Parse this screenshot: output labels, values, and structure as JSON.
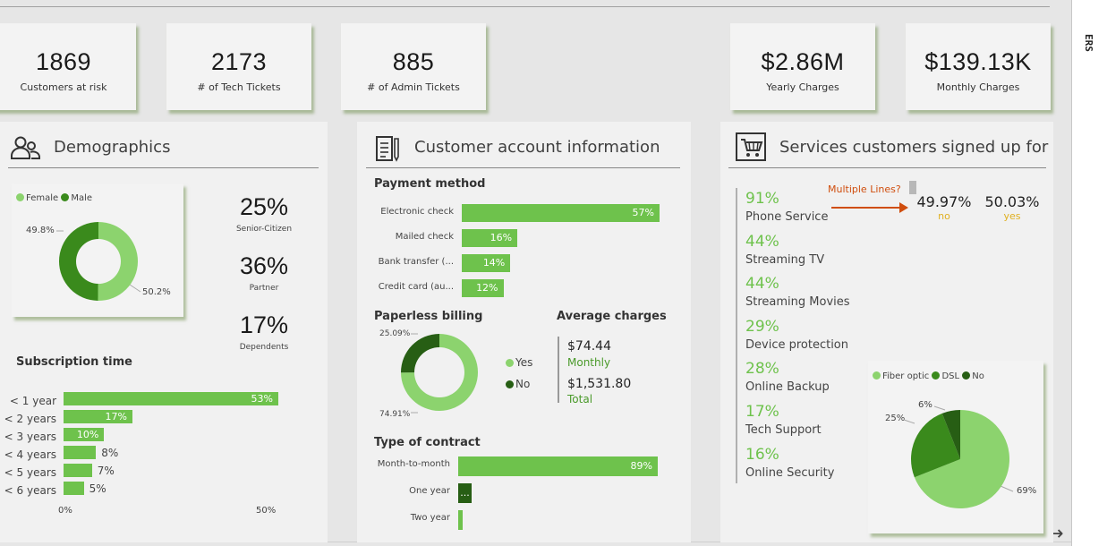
{
  "kpis": [
    {
      "value": "1869",
      "label": "Customers at risk"
    },
    {
      "value": "2173",
      "label": "# of Tech Tickets"
    },
    {
      "value": "885",
      "label": "# of Admin Tickets"
    },
    {
      "value": "$2.86M",
      "label": "Yearly Charges"
    },
    {
      "value": "$139.13K",
      "label": "Monthly Charges"
    }
  ],
  "side_panel": {
    "text": "ERS"
  },
  "colors": {
    "green": "#6ec24c",
    "light_green": "#8cd36e",
    "dark_green": "#3a8a1c",
    "darkest_green": "#275e14",
    "orange": "#d04e0e",
    "gold": "#e0b020"
  },
  "demographics": {
    "title": "Demographics",
    "gender_legend": [
      "Female",
      "Male"
    ],
    "gender_labels": [
      "49.8%",
      "50.2%"
    ],
    "stats": [
      {
        "value": "25%",
        "label": "Senior-Citizen"
      },
      {
        "value": "36%",
        "label": "Partner"
      },
      {
        "value": "17%",
        "label": "Dependents"
      }
    ],
    "subscription_title": "Subscription time",
    "subscription": [
      {
        "label": "< 1 year",
        "value": "53%",
        "pct": 53
      },
      {
        "label": "< 2 years",
        "value": "17%",
        "pct": 17
      },
      {
        "label": "< 3 years",
        "value": "10%",
        "pct": 10
      },
      {
        "label": "< 4 years",
        "value": "8%",
        "pct": 8
      },
      {
        "label": "< 5 years",
        "value": "7%",
        "pct": 7
      },
      {
        "label": "< 6 years",
        "value": "5%",
        "pct": 5
      }
    ],
    "axis": [
      "0%",
      "50%"
    ]
  },
  "account": {
    "title": "Customer account information",
    "payment_title": "Payment method",
    "payment": [
      {
        "label": "Electronic check",
        "value": "57%",
        "pct": 57
      },
      {
        "label": "Mailed check",
        "value": "16%",
        "pct": 16
      },
      {
        "label": "Bank transfer (...",
        "value": "14%",
        "pct": 14
      },
      {
        "label": "Credit card (au...",
        "value": "12%",
        "pct": 12
      }
    ],
    "paperless_title": "Paperless billing",
    "paperless_labels": [
      "25.09%",
      "74.91%"
    ],
    "paperless_legend": [
      "Yes",
      "No"
    ],
    "avg_title": "Average charges",
    "avg_monthly": "$74.44",
    "avg_monthly_label": "Monthly",
    "avg_total": "$1,531.80",
    "avg_total_label": "Total",
    "contract_title": "Type of contract",
    "contract": [
      {
        "label": "Month-to-month",
        "value": "89%",
        "pct": 89
      },
      {
        "label": "One year",
        "value": "...",
        "pct": 6
      },
      {
        "label": "Two year",
        "value": "",
        "pct": 2
      }
    ]
  },
  "services": {
    "title": "Services customers signed up for",
    "items": [
      {
        "pct": "91%",
        "name": "Phone Service"
      },
      {
        "pct": "44%",
        "name": "Streaming TV"
      },
      {
        "pct": "44%",
        "name": "Streaming Movies"
      },
      {
        "pct": "29%",
        "name": "Device protection"
      },
      {
        "pct": "28%",
        "name": "Online Backup"
      },
      {
        "pct": "17%",
        "name": "Tech Support"
      },
      {
        "pct": "16%",
        "name": "Online Security"
      }
    ],
    "multiple_lines_label": "Multiple Lines?",
    "ml_no_value": "49.97%",
    "ml_no_label": "no",
    "ml_yes_value": "50.03%",
    "ml_yes_label": "yes",
    "internet_legend": [
      "Fiber optic",
      "DSL",
      "No"
    ],
    "internet_labels": [
      "6%",
      "25%",
      "69%"
    ]
  }
}
